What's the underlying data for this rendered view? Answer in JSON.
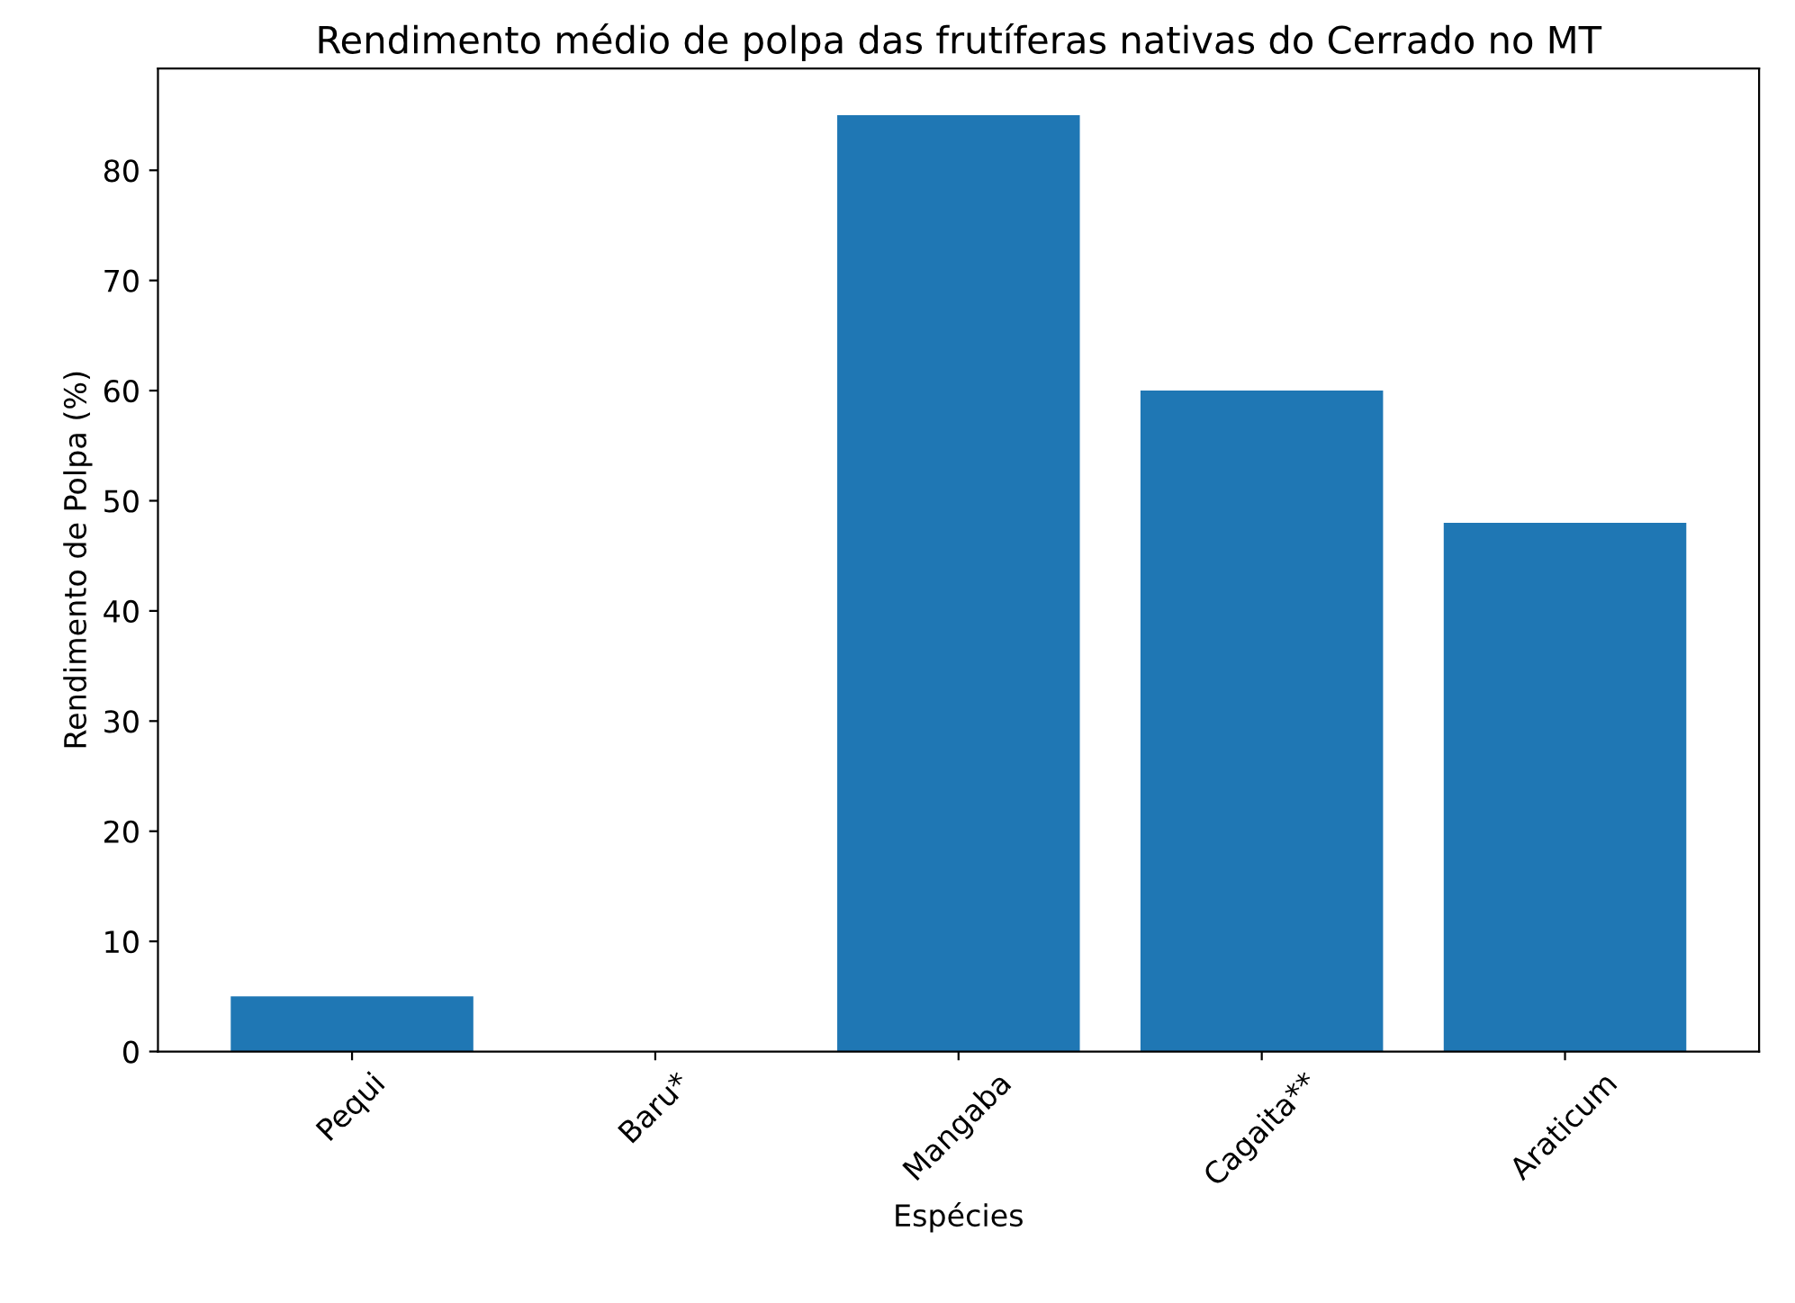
{
  "chart_data": {
    "type": "bar",
    "title": "Rendimento médio de polpa das frutíferas nativas do Cerrado no MT",
    "xlabel": "Espécies",
    "ylabel": "Rendimento de Polpa (%)",
    "categories": [
      "Pequi",
      "Baru*",
      "Mangaba",
      "Cagaita**",
      "Araticum"
    ],
    "values": [
      5,
      0,
      85,
      60,
      48
    ],
    "color": "#1f77b4",
    "ylim": [
      0,
      89.25
    ],
    "yticks": [
      0,
      10,
      20,
      30,
      40,
      50,
      60,
      70,
      80
    ],
    "grid": false
  }
}
